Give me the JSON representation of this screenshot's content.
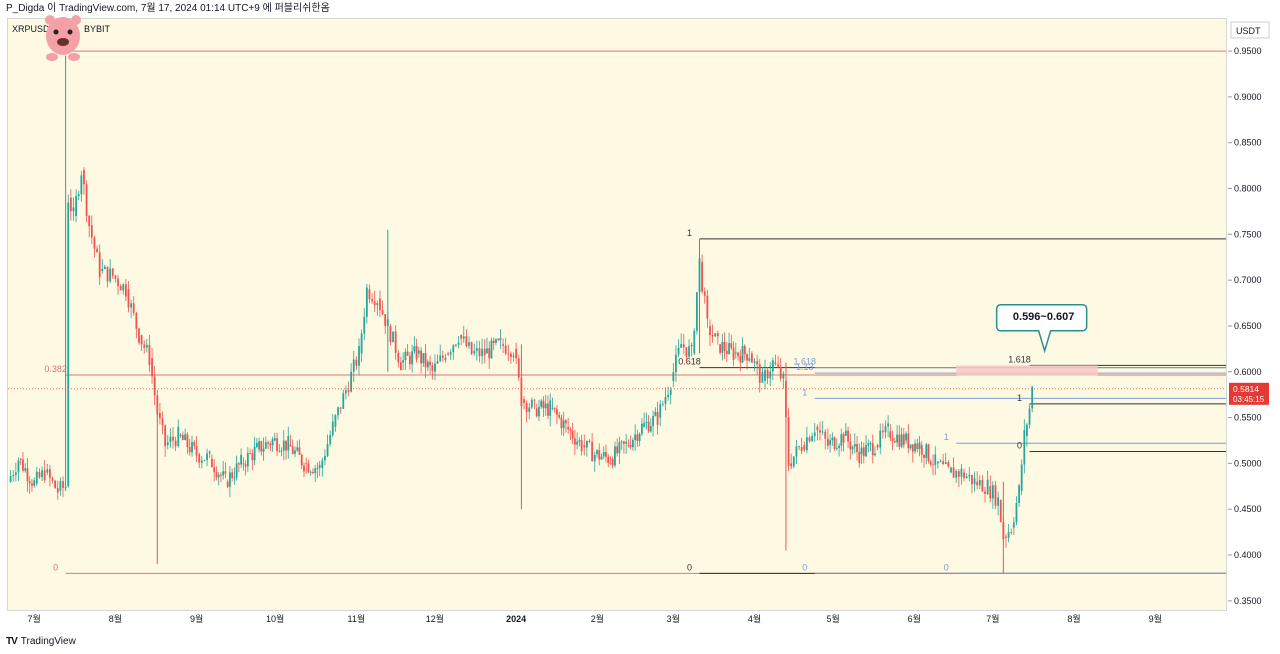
{
  "header": {
    "text": "P_Digda 이 TradingView.com, 7월 17, 2024 01:14 UTC+9 에 퍼블리쉬한옴"
  },
  "symbol": {
    "name": "XRPUSDT",
    "exchange": "BYBIT"
  },
  "footer": {
    "brand": "TradingView"
  },
  "callout": {
    "text": "0.596~0.607"
  },
  "price_label": {
    "value": "0.5814",
    "countdown": "03:45:15"
  },
  "colors": {
    "up": "#26a69a",
    "down": "#ef5350",
    "fib_red": "#e57373",
    "fib_blue": "#7b9fd9",
    "fib_black": "#333333",
    "zone": "#f8c8c8",
    "callout_border": "#2a8f8a"
  },
  "chart_data": {
    "type": "candlestick",
    "yunit": "USDT",
    "ylim": [
      0.34,
      0.985
    ],
    "y_ticks": [
      "0.3500",
      "0.4000",
      "0.4500",
      "0.5000",
      "0.5500",
      "0.6000",
      "0.6500",
      "0.7000",
      "0.7500",
      "0.8000",
      "0.8500",
      "0.9000",
      "0.9500"
    ],
    "x_ticks": [
      "7월",
      "8월",
      "9월",
      "10월",
      "11월",
      "12월",
      "2024",
      "2월",
      "3월",
      "4월",
      "5월",
      "6월",
      "7월",
      "8월",
      "9월"
    ],
    "x_tick_dates": [
      "2023-07-01",
      "2023-08-01",
      "2023-09-01",
      "2023-10-01",
      "2023-11-01",
      "2023-12-01",
      "2024-01-01",
      "2024-02-01",
      "2024-03-01",
      "2024-04-01",
      "2024-05-01",
      "2024-06-01",
      "2024-07-01",
      "2024-08-01",
      "2024-09-01"
    ],
    "xlim": [
      "2023-06-21",
      "2024-09-28"
    ],
    "price_path": [
      [
        "2023-06-21",
        0.48
      ],
      [
        "2023-06-25",
        0.505
      ],
      [
        "2023-07-01",
        0.478
      ],
      [
        "2023-07-05",
        0.49
      ],
      [
        "2023-07-10",
        0.47
      ],
      [
        "2023-07-13",
        0.475
      ],
      [
        "2023-07-14",
        0.79
      ],
      [
        "2023-07-16",
        0.77
      ],
      [
        "2023-07-19",
        0.82
      ],
      [
        "2023-07-22",
        0.76
      ],
      [
        "2023-07-26",
        0.71
      ],
      [
        "2023-07-31",
        0.705
      ],
      [
        "2023-08-05",
        0.69
      ],
      [
        "2023-08-10",
        0.64
      ],
      [
        "2023-08-14",
        0.615
      ],
      [
        "2023-08-17",
        0.555
      ],
      [
        "2023-08-20",
        0.52
      ],
      [
        "2023-08-25",
        0.53
      ],
      [
        "2023-09-01",
        0.51
      ],
      [
        "2023-09-06",
        0.505
      ],
      [
        "2023-09-12",
        0.48
      ],
      [
        "2023-09-18",
        0.5
      ],
      [
        "2023-09-24",
        0.515
      ],
      [
        "2023-09-30",
        0.525
      ],
      [
        "2023-10-06",
        0.52
      ],
      [
        "2023-10-12",
        0.5
      ],
      [
        "2023-10-18",
        0.495
      ],
      [
        "2023-10-23",
        0.54
      ],
      [
        "2023-10-28",
        0.58
      ],
      [
        "2023-11-02",
        0.62
      ],
      [
        "2023-11-05",
        0.69
      ],
      [
        "2023-11-09",
        0.68
      ],
      [
        "2023-11-13",
        0.65
      ],
      [
        "2023-11-18",
        0.61
      ],
      [
        "2023-11-24",
        0.62
      ],
      [
        "2023-11-30",
        0.6
      ],
      [
        "2023-12-05",
        0.62
      ],
      [
        "2023-12-10",
        0.64
      ],
      [
        "2023-12-15",
        0.62
      ],
      [
        "2023-12-20",
        0.62
      ],
      [
        "2023-12-26",
        0.63
      ],
      [
        "2023-12-31",
        0.625
      ],
      [
        "2024-01-03",
        0.57
      ],
      [
        "2024-01-08",
        0.56
      ],
      [
        "2024-01-14",
        0.56
      ],
      [
        "2024-01-20",
        0.54
      ],
      [
        "2024-01-26",
        0.52
      ],
      [
        "2024-01-31",
        0.51
      ],
      [
        "2024-02-06",
        0.505
      ],
      [
        "2024-02-12",
        0.52
      ],
      [
        "2024-02-18",
        0.54
      ],
      [
        "2024-02-24",
        0.55
      ],
      [
        "2024-02-29",
        0.59
      ],
      [
        "2024-03-04",
        0.63
      ],
      [
        "2024-03-08",
        0.62
      ],
      [
        "2024-03-11",
        0.72
      ],
      [
        "2024-03-14",
        0.65
      ],
      [
        "2024-03-18",
        0.63
      ],
      [
        "2024-03-24",
        0.62
      ],
      [
        "2024-03-30",
        0.62
      ],
      [
        "2024-04-04",
        0.59
      ],
      [
        "2024-04-08",
        0.61
      ],
      [
        "2024-04-12",
        0.59
      ],
      [
        "2024-04-14",
        0.5
      ],
      [
        "2024-04-19",
        0.52
      ],
      [
        "2024-04-24",
        0.54
      ],
      [
        "2024-04-29",
        0.52
      ],
      [
        "2024-05-05",
        0.53
      ],
      [
        "2024-05-11",
        0.51
      ],
      [
        "2024-05-17",
        0.52
      ],
      [
        "2024-05-22",
        0.535
      ],
      [
        "2024-05-28",
        0.525
      ],
      [
        "2024-06-03",
        0.52
      ],
      [
        "2024-06-09",
        0.5
      ],
      [
        "2024-06-14",
        0.49
      ],
      [
        "2024-06-19",
        0.49
      ],
      [
        "2024-06-24",
        0.48
      ],
      [
        "2024-06-29",
        0.475
      ],
      [
        "2024-07-03",
        0.46
      ],
      [
        "2024-07-05",
        0.42
      ],
      [
        "2024-07-08",
        0.43
      ],
      [
        "2024-07-11",
        0.47
      ],
      [
        "2024-07-13",
        0.53
      ],
      [
        "2024-07-15",
        0.56
      ],
      [
        "2024-07-16",
        0.5814
      ]
    ],
    "spikes": [
      {
        "date": "2023-07-13",
        "high": 0.945,
        "low": 0.47,
        "color": "up"
      },
      {
        "date": "2023-08-17",
        "high": 0.56,
        "low": 0.39,
        "color": "down"
      },
      {
        "date": "2023-11-13",
        "high": 0.755,
        "low": 0.6,
        "color": "up"
      },
      {
        "date": "2024-01-03",
        "high": 0.63,
        "low": 0.45,
        "color": "down"
      },
      {
        "date": "2024-03-11",
        "high": 0.745,
        "low": 0.62,
        "color": "up"
      },
      {
        "date": "2024-04-13",
        "high": 0.61,
        "low": 0.405,
        "color": "down"
      },
      {
        "date": "2024-07-05",
        "high": 0.48,
        "low": 0.38,
        "color": "down"
      }
    ],
    "fib_sets": [
      {
        "color": "red",
        "from_date": "2023-07-13",
        "to_date": "2024-09-28",
        "levels": [
          {
            "label": "0",
            "value": 0.38
          },
          {
            "label": "0.382",
            "value": 0.5965
          },
          {
            "label": "",
            "value": 0.95
          }
        ]
      },
      {
        "color": "black",
        "from_date": "2024-03-11",
        "to_date": "2024-09-28",
        "levels": [
          {
            "label": "1",
            "value": 0.745
          },
          {
            "label": "0.618",
            "value": 0.6045
          },
          {
            "label": "0",
            "value": 0.38
          }
        ]
      },
      {
        "color": "blue",
        "from_date": "2024-04-24",
        "to_date": "2024-09-28",
        "levels": [
          {
            "label": "1",
            "value": 0.571
          },
          {
            "label": "1.13",
            "value": 0.5985
          },
          {
            "label": "1.618",
            "value": 0.6045
          },
          {
            "label": "0",
            "value": 0.38
          }
        ]
      },
      {
        "color": "blue",
        "from_date": "2024-06-17",
        "to_date": "2024-09-28",
        "levels": [
          {
            "label": "1",
            "value": 0.522
          },
          {
            "label": "0",
            "value": 0.38
          }
        ]
      },
      {
        "color": "black",
        "from_date": "2024-07-15",
        "to_date": "2024-09-28",
        "levels": [
          {
            "label": "1",
            "value": 0.565
          },
          {
            "label": "1.618",
            "value": 0.607
          },
          {
            "label": "0",
            "value": 0.513
          }
        ]
      }
    ],
    "zone": {
      "from_date": "2024-06-17",
      "to_date": "2024-08-10",
      "low": 0.596,
      "high": 0.607
    },
    "current_price": 0.5814
  }
}
